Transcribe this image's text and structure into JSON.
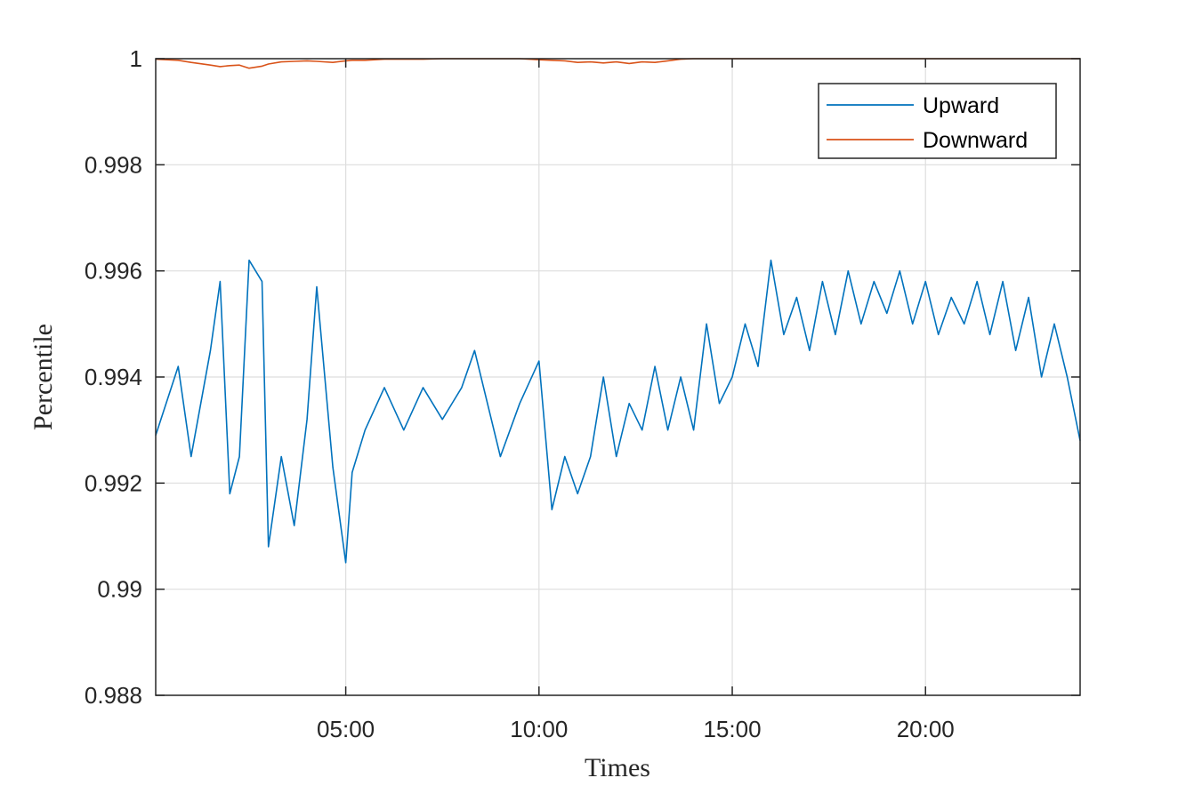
{
  "chart_data": {
    "type": "line",
    "xlabel": "Times",
    "ylabel": "Percentile",
    "x_unit": "time of day (HH:MM)",
    "xlim": [
      "00:05",
      "24:00"
    ],
    "ylim": [
      0.988,
      1.0
    ],
    "x_ticks": [
      "05:00",
      "10:00",
      "15:00",
      "20:00"
    ],
    "y_ticks": [
      0.988,
      0.99,
      0.992,
      0.994,
      0.996,
      0.998,
      1
    ],
    "y_tick_labels": [
      "0.988",
      "0.99",
      "0.992",
      "0.994",
      "0.996",
      "0.998",
      "1"
    ],
    "grid": true,
    "legend_position": "top-right",
    "legend": [
      "Upward",
      "Downward"
    ],
    "series": [
      {
        "name": "Upward",
        "color": "#0072BD",
        "x": [
          "00:05",
          "00:40",
          "01:00",
          "01:30",
          "01:45",
          "02:00",
          "02:15",
          "02:30",
          "02:50",
          "03:00",
          "03:20",
          "03:40",
          "04:00",
          "04:15",
          "04:40",
          "05:00",
          "05:10",
          "05:30",
          "06:00",
          "06:30",
          "07:00",
          "07:30",
          "08:00",
          "08:20",
          "08:40",
          "09:00",
          "09:30",
          "10:00",
          "10:20",
          "10:40",
          "11:00",
          "11:20",
          "11:40",
          "12:00",
          "12:20",
          "12:40",
          "13:00",
          "13:20",
          "13:40",
          "14:00",
          "14:20",
          "14:40",
          "15:00",
          "15:20",
          "15:40",
          "16:00",
          "16:20",
          "16:40",
          "17:00",
          "17:20",
          "17:40",
          "18:00",
          "18:20",
          "18:40",
          "19:00",
          "19:20",
          "19:40",
          "20:00",
          "20:20",
          "20:40",
          "21:00",
          "21:20",
          "21:40",
          "22:00",
          "22:20",
          "22:40",
          "23:00",
          "23:20",
          "23:40",
          "24:00"
        ],
        "values": [
          0.9929,
          0.9942,
          0.9925,
          0.9945,
          0.9958,
          0.9918,
          0.9925,
          0.9962,
          0.9958,
          0.9908,
          0.9925,
          0.9912,
          0.9932,
          0.9957,
          0.9923,
          0.9905,
          0.9922,
          0.993,
          0.9938,
          0.993,
          0.9938,
          0.9932,
          0.9938,
          0.9945,
          0.9935,
          0.9925,
          0.9935,
          0.9943,
          0.9915,
          0.9925,
          0.9918,
          0.9925,
          0.994,
          0.9925,
          0.9935,
          0.993,
          0.9942,
          0.993,
          0.994,
          0.993,
          0.995,
          0.9935,
          0.994,
          0.995,
          0.9942,
          0.9962,
          0.9948,
          0.9955,
          0.9945,
          0.9958,
          0.9948,
          0.996,
          0.995,
          0.9958,
          0.9952,
          0.996,
          0.995,
          0.9958,
          0.9948,
          0.9955,
          0.995,
          0.9958,
          0.9948,
          0.9958,
          0.9945,
          0.9955,
          0.994,
          0.995,
          0.994,
          0.9928
        ]
      },
      {
        "name": "Downward",
        "color": "#D95319",
        "x": [
          "00:05",
          "00:40",
          "01:00",
          "01:30",
          "01:45",
          "02:00",
          "02:15",
          "02:30",
          "02:50",
          "03:00",
          "03:20",
          "03:40",
          "04:00",
          "04:15",
          "04:40",
          "05:00",
          "05:10",
          "05:30",
          "06:00",
          "06:30",
          "07:00",
          "07:30",
          "08:00",
          "08:20",
          "08:40",
          "09:00",
          "09:30",
          "10:00",
          "10:20",
          "10:40",
          "11:00",
          "11:20",
          "11:40",
          "12:00",
          "12:20",
          "12:40",
          "13:00",
          "13:20",
          "13:40",
          "14:00",
          "14:20",
          "14:40",
          "15:00",
          "15:20",
          "15:40",
          "16:00",
          "16:20",
          "16:40",
          "17:00",
          "17:20",
          "17:40",
          "18:00",
          "18:20",
          "18:40",
          "19:00",
          "19:20",
          "19:40",
          "20:00",
          "20:20",
          "20:40",
          "21:00",
          "21:20",
          "21:40",
          "22:00",
          "22:20",
          "22:40",
          "23:00",
          "23:20",
          "23:40",
          "24:00"
        ],
        "values": [
          0.99999,
          0.99997,
          0.99993,
          0.99988,
          0.99985,
          0.99987,
          0.99988,
          0.99982,
          0.99986,
          0.9999,
          0.99994,
          0.99995,
          0.99996,
          0.99995,
          0.99993,
          0.99996,
          0.99997,
          0.99997,
          0.99999,
          0.99999,
          0.99999,
          1.0,
          1.0,
          1.0,
          1.0,
          1.0,
          1.0,
          0.99998,
          0.99997,
          0.99996,
          0.99993,
          0.99994,
          0.99992,
          0.99994,
          0.99991,
          0.99994,
          0.99993,
          0.99996,
          0.99999,
          1.0,
          1.0,
          1.0,
          1.0,
          1.0,
          1.0,
          1.0,
          1.0,
          1.0,
          1.0,
          1.0,
          1.0,
          1.0,
          1.0,
          1.0,
          1.0,
          1.0,
          1.0,
          1.0,
          1.0,
          1.0,
          1.0,
          1.0,
          1.0,
          1.0,
          1.0,
          1.0,
          1.0,
          1.0,
          1.0,
          1.0
        ]
      }
    ]
  }
}
